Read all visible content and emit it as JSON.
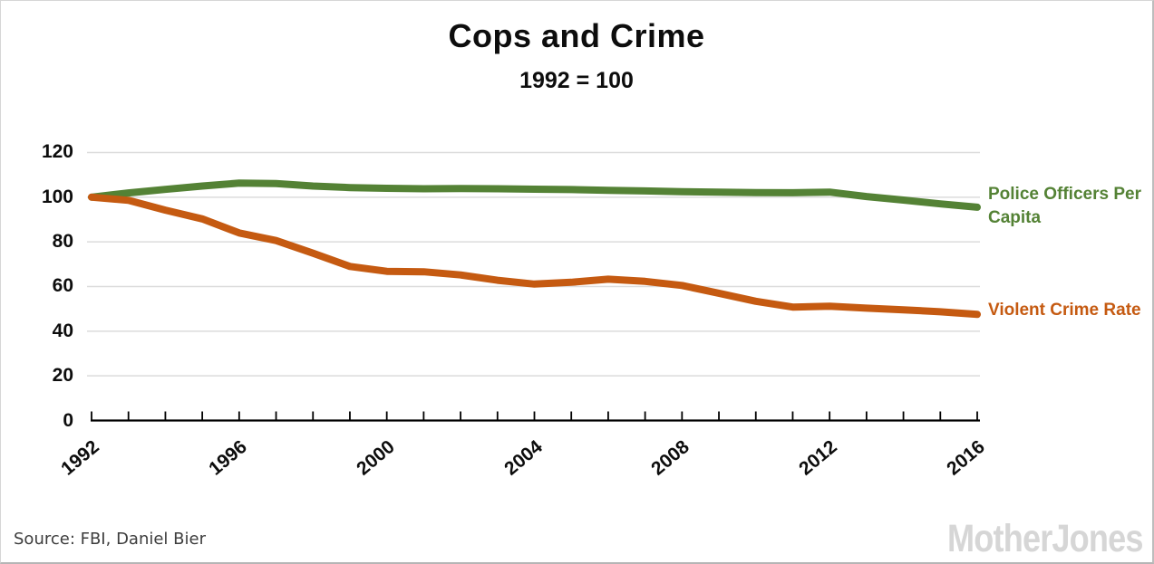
{
  "page": {
    "title": "Cops and Crime",
    "subtitle": "1992 = 100",
    "source": "Source: FBI, Daniel Bier",
    "brand": "MotherJones"
  },
  "colors": {
    "police_green": "#548235",
    "crime_orange": "#c55a11",
    "gridline": "#dcdcdc",
    "axis": "#000000",
    "brand_gray": "#d6d6d6"
  },
  "chart_data": {
    "type": "line",
    "title": "Cops and Crime",
    "subtitle": "1992 = 100",
    "x": [
      1992,
      1993,
      1994,
      1995,
      1996,
      1997,
      1998,
      1999,
      2000,
      2001,
      2002,
      2003,
      2004,
      2005,
      2006,
      2007,
      2008,
      2009,
      2010,
      2011,
      2012,
      2013,
      2014,
      2015,
      2016
    ],
    "xticks": [
      1992,
      1996,
      2000,
      2004,
      2008,
      2012,
      2016
    ],
    "yticks": [
      0,
      20,
      40,
      60,
      80,
      100,
      120
    ],
    "ylim": [
      0,
      120
    ],
    "grid": "horizontal-light",
    "legend_position": "right-of-lines",
    "series": [
      {
        "name": "Police Officers Per Capita",
        "color": "#548235",
        "values": [
          100,
          101.9,
          103.5,
          105,
          106.3,
          106.1,
          105,
          104.3,
          104,
          103.8,
          103.9,
          103.8,
          103.6,
          103.4,
          103.1,
          102.8,
          102.5,
          102.3,
          102.1,
          102,
          102.3,
          100.3,
          98.7,
          97,
          95.5
        ]
      },
      {
        "name": "Violent Crime Rate",
        "color": "#c55a11",
        "values": [
          100,
          98.6,
          94.2,
          90.3,
          84,
          80.6,
          74.9,
          69,
          66.8,
          66.6,
          65.2,
          62.8,
          61.1,
          61.9,
          63.3,
          62.3,
          60.5,
          57,
          53.4,
          50.8,
          51.2,
          50.3,
          49.6,
          48.7,
          47.5
        ]
      }
    ]
  }
}
